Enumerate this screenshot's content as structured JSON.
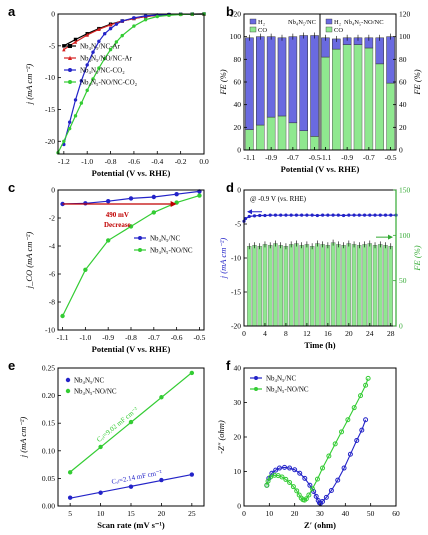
{
  "chart_data": [
    {
      "panel": "a",
      "type": "line",
      "xlabel": "Potential (V vs. RHE)",
      "ylabel": "j (mA cm⁻²)",
      "xlim": [
        -1.25,
        0.0
      ],
      "ylim": [
        -22,
        0
      ],
      "xticks": [
        -1.2,
        -1.0,
        -0.8,
        -0.6,
        -0.4,
        -0.2,
        0.0
      ],
      "xtick_labels": [
        "-1.2",
        "-1.0",
        "-0.8",
        "-0.6",
        "-0.4",
        "-0.2",
        "0.0"
      ],
      "yticks": [
        0,
        -5,
        -10,
        -15,
        -20
      ],
      "ytick_labels": [
        "0",
        "-5",
        "-10",
        "-15",
        "-20"
      ],
      "legend": "top-left",
      "series": [
        {
          "name": "Nb₄N₅/NC-Ar",
          "color": "#000000",
          "marker": "square",
          "x": [
            -1.2,
            -1.1,
            -1.0,
            -0.9,
            -0.8,
            -0.7,
            -0.6,
            -0.5,
            -0.4,
            -0.3,
            -0.2,
            -0.1,
            0.0
          ],
          "y": [
            -5.0,
            -4.0,
            -3.1,
            -2.3,
            -1.6,
            -1.1,
            -0.7,
            -0.4,
            -0.2,
            -0.1,
            -0.05,
            -0.02,
            0.0
          ]
        },
        {
          "name": "Nb₄N₅/NO/NC-Ar",
          "color": "#d62020",
          "marker": "triangle",
          "x": [
            -1.2,
            -1.1,
            -1.0,
            -0.9,
            -0.8,
            -0.7,
            -0.6,
            -0.5,
            -0.4,
            -0.3,
            -0.2,
            -0.1,
            0.0
          ],
          "y": [
            -5.6,
            -4.4,
            -3.3,
            -2.4,
            -1.7,
            -1.1,
            -0.7,
            -0.4,
            -0.2,
            -0.1,
            -0.05,
            -0.02,
            0.0
          ]
        },
        {
          "name": "Nb₄N₅/NC-CO₂",
          "color": "#2323c8",
          "marker": "circle",
          "x": [
            -1.2,
            -1.15,
            -1.1,
            -1.05,
            -1.0,
            -0.95,
            -0.9,
            -0.85,
            -0.8,
            -0.75,
            -0.7,
            -0.6,
            -0.5,
            -0.4,
            -0.3,
            -0.2,
            -0.1,
            0.0
          ],
          "y": [
            -20.5,
            -17.0,
            -13.5,
            -10.5,
            -8.0,
            -6.0,
            -4.3,
            -3.1,
            -2.3,
            -1.6,
            -1.1,
            -0.6,
            -0.3,
            -0.15,
            -0.08,
            -0.04,
            -0.02,
            0.0
          ]
        },
        {
          "name": "Nb₄N₅-NO/NC-CO₂",
          "color": "#33cc33",
          "marker": "circle",
          "x": [
            -1.25,
            -1.2,
            -1.15,
            -1.1,
            -1.05,
            -1.0,
            -0.95,
            -0.9,
            -0.85,
            -0.8,
            -0.75,
            -0.7,
            -0.6,
            -0.5,
            -0.4,
            -0.3,
            -0.2,
            -0.1,
            0.0
          ],
          "y": [
            -21.8,
            -20.0,
            -18.0,
            -16.0,
            -14.0,
            -12.0,
            -10.2,
            -8.5,
            -7.0,
            -5.6,
            -4.4,
            -3.4,
            -1.9,
            -0.9,
            -0.4,
            -0.2,
            -0.08,
            -0.03,
            0.0
          ]
        }
      ]
    },
    {
      "panel": "b",
      "type": "bar",
      "xlabel": "Potential (V vs. RHE)",
      "ylabel_left": "FE (%)",
      "ylabel_right": "FE (%)",
      "ylim": [
        0,
        120
      ],
      "yticks": [
        0,
        20,
        40,
        60,
        80,
        100,
        120
      ],
      "ytick_labels": [
        "0",
        "20",
        "40",
        "60",
        "80",
        "100",
        "120"
      ],
      "x": [
        -1.1,
        -1.0,
        -0.9,
        -0.8,
        -0.7,
        -0.6,
        -0.5
      ],
      "xtick_labels": [
        "-1.1",
        "-0.9",
        "-0.7",
        "-0.5"
      ],
      "colors": {
        "H2": "#6a6ae0",
        "CO": "#8fe88f"
      },
      "subpanels": [
        {
          "title": "Nb₄N₅/NC",
          "legend": [
            "H₂",
            "CO"
          ],
          "series": [
            {
              "name": "H₂",
              "values": [
                81,
                78,
                71,
                69,
                76,
                84,
                89
              ]
            },
            {
              "name": "CO",
              "values": [
                18,
                22,
                29,
                30,
                24,
                17,
                12
              ]
            }
          ],
          "total": [
            99,
            100,
            100,
            99,
            100,
            101,
            101
          ]
        },
        {
          "title": "Nb₄N₅-NO/NC",
          "legend": [
            "H₂",
            "CO"
          ],
          "series": [
            {
              "name": "H₂",
              "values": [
                17,
                9,
                6,
                6,
                9,
                23,
                41
              ]
            },
            {
              "name": "CO",
              "values": [
                82,
                89,
                93,
                93,
                90,
                76,
                59
              ]
            }
          ],
          "total": [
            99,
            98,
            99,
            99,
            99,
            99,
            100
          ]
        }
      ]
    },
    {
      "panel": "c",
      "type": "line",
      "xlabel": "Potential (V vs. RHE)",
      "ylabel": "j_CO (mA cm⁻²)",
      "xlim": [
        -1.12,
        -0.48
      ],
      "ylim": [
        -10,
        0
      ],
      "xticks": [
        -1.1,
        -1.0,
        -0.9,
        -0.8,
        -0.7,
        -0.6,
        -0.5
      ],
      "xtick_labels": [
        "-1.1",
        "-1.0",
        "-0.9",
        "-0.8",
        "-0.7",
        "-0.6",
        "-0.5"
      ],
      "yticks": [
        0,
        -2,
        -4,
        -6,
        -8,
        -10
      ],
      "ytick_labels": [
        "0",
        "-2",
        "-4",
        "-6",
        "-8",
        "-10"
      ],
      "annotation": {
        "value": "490 mV",
        "label": "Decrease",
        "color": "#c00000"
      },
      "legend": "center-right",
      "series": [
        {
          "name": "Nb₄N₅/NC",
          "color": "#2323c8",
          "x": [
            -1.1,
            -1.0,
            -0.9,
            -0.8,
            -0.7,
            -0.6,
            -0.5
          ],
          "y": [
            -1.0,
            -0.95,
            -0.8,
            -0.6,
            -0.5,
            -0.3,
            -0.1
          ]
        },
        {
          "name": "Nb₄N₅-NO/NC",
          "color": "#33cc33",
          "x": [
            -1.1,
            -1.0,
            -0.9,
            -0.8,
            -0.7,
            -0.6,
            -0.5
          ],
          "y": [
            -9.0,
            -5.7,
            -3.6,
            -2.6,
            -1.6,
            -0.9,
            -0.4
          ]
        }
      ]
    },
    {
      "panel": "d",
      "type": "line",
      "annotation": "@ -0.9 V (vs. RHE)",
      "xlabel": "Time (h)",
      "ylabel_left": "j (mA cm⁻²)",
      "ylabel_right": "FE (%)",
      "xlim": [
        0,
        29
      ],
      "xticks": [
        0,
        4,
        8,
        12,
        16,
        20,
        24,
        28
      ],
      "xtick_labels": [
        "0",
        "4",
        "8",
        "12",
        "16",
        "20",
        "24",
        "28"
      ],
      "ylim_left": [
        -20,
        0
      ],
      "yticks_left": [
        0,
        -5,
        -10,
        -15,
        -20
      ],
      "ytick_labels_left": [
        "0",
        "-5",
        "-10",
        "-15",
        "-20"
      ],
      "ylim_right": [
        0,
        150
      ],
      "yticks_right": [
        0,
        50,
        100,
        150
      ],
      "ytick_labels_right": [
        "0",
        "50",
        "100",
        "150"
      ],
      "series": [
        {
          "name": "j",
          "color": "#2323c8",
          "x": [
            0,
            0.3,
            1,
            2,
            3,
            4,
            5,
            6,
            7,
            8,
            9,
            10,
            11,
            12,
            13,
            14,
            15,
            16,
            17,
            18,
            19,
            20,
            21,
            22,
            23,
            24,
            25,
            26,
            27,
            28,
            29
          ],
          "y": [
            -4.6,
            -4.2,
            -3.9,
            -3.8,
            -3.75,
            -3.75,
            -3.7,
            -3.7,
            -3.7,
            -3.7,
            -3.7,
            -3.7,
            -3.7,
            -3.7,
            -3.7,
            -3.75,
            -3.7,
            -3.7,
            -3.7,
            -3.7,
            -3.75,
            -3.7,
            -3.7,
            -3.7,
            -3.7,
            -3.7,
            -3.7,
            -3.7,
            -3.7,
            -3.7,
            -3.7
          ]
        },
        {
          "name": "FE",
          "color": "#8fe88f",
          "type": "bar",
          "x": [
            1,
            2,
            3,
            4,
            5,
            6,
            7,
            8,
            9,
            10,
            11,
            12,
            13,
            14,
            15,
            16,
            17,
            18,
            19,
            20,
            21,
            22,
            23,
            24,
            25,
            26,
            27,
            28
          ],
          "values": [
            88,
            89,
            88,
            90,
            89,
            91,
            89,
            88,
            90,
            91,
            89,
            90,
            88,
            91,
            90,
            89,
            92,
            90,
            89,
            91,
            90,
            89,
            90,
            91,
            89,
            90,
            89,
            88
          ]
        }
      ]
    },
    {
      "panel": "e",
      "type": "scatter",
      "xlabel": "Scan rate (mV s⁻¹)",
      "ylabel": "j (mA cm⁻²)",
      "xlim": [
        3,
        27
      ],
      "xticks": [
        5,
        10,
        15,
        20,
        25
      ],
      "xtick_labels": [
        "5",
        "10",
        "15",
        "20",
        "25"
      ],
      "ylim": [
        0,
        0.25
      ],
      "yticks": [
        0.0,
        0.05,
        0.1,
        0.15,
        0.2,
        0.25
      ],
      "ytick_labels": [
        "0.00",
        "0.05",
        "0.10",
        "0.15",
        "0.20",
        "0.25"
      ],
      "legend": "top-left",
      "series": [
        {
          "name": "Nb₄N₅/NC",
          "color": "#2323c8",
          "x": [
            5,
            10,
            15,
            20,
            25
          ],
          "y": [
            0.015,
            0.024,
            0.035,
            0.047,
            0.057
          ],
          "fit_label": "Cₑₗ=2.14 mF cm⁻²"
        },
        {
          "name": "Nb₄N₅-NO/NC",
          "color": "#33cc33",
          "x": [
            5,
            10,
            15,
            20,
            25
          ],
          "y": [
            0.061,
            0.107,
            0.152,
            0.197,
            0.241
          ],
          "fit_label": "Cₑₗ=9.02 mF cm⁻²"
        }
      ]
    },
    {
      "panel": "f",
      "type": "scatter",
      "xlabel": "Z′ (ohm)",
      "ylabel": "-Z″ (ohm)",
      "xlim": [
        0,
        60
      ],
      "xticks": [
        0,
        10,
        20,
        30,
        40,
        50,
        60
      ],
      "xtick_labels": [
        "0",
        "10",
        "20",
        "30",
        "40",
        "50",
        "60"
      ],
      "ylim": [
        0,
        40
      ],
      "yticks": [
        0,
        10,
        20,
        30,
        40
      ],
      "ytick_labels": [
        "0",
        "10",
        "20",
        "30",
        "40"
      ],
      "legend": "top-left",
      "series": [
        {
          "name": "Nb₄N₅/NC",
          "color": "#2323c8",
          "x": [
            9,
            9.8,
            11,
            12.5,
            14,
            16,
            18,
            20,
            22,
            24,
            26,
            27.5,
            28.5,
            29.3,
            29.8,
            30.2,
            31,
            32.5,
            34.5,
            37,
            39.5,
            42,
            44.5,
            46.5,
            48
          ],
          "y": [
            6,
            8,
            9.5,
            10.4,
            11,
            11.2,
            11,
            10.5,
            9.5,
            8,
            6,
            4.2,
            2.8,
            1.6,
            0.9,
            0.8,
            1.3,
            2.5,
            4.5,
            7.5,
            11,
            15,
            19,
            22,
            25
          ]
        },
        {
          "name": "Nb₄N₅-NO/NC",
          "color": "#33cc33",
          "x": [
            9,
            9.5,
            10.5,
            12,
            13.5,
            15,
            16.5,
            18,
            19.5,
            20.8,
            21.8,
            22.6,
            23.3,
            23.9,
            24.6,
            25.6,
            27,
            29,
            31,
            33.5,
            36,
            38.5,
            41,
            43.5,
            46,
            48,
            49
          ],
          "y": [
            6,
            7.2,
            8.4,
            8.9,
            8.8,
            8.4,
            7.7,
            6.8,
            5.6,
            4.4,
            3.2,
            2.3,
            1.8,
            1.7,
            2.1,
            3.2,
            5,
            7.8,
            11,
            14.5,
            18,
            21.5,
            25,
            28.5,
            32,
            35,
            37
          ]
        }
      ]
    }
  ]
}
